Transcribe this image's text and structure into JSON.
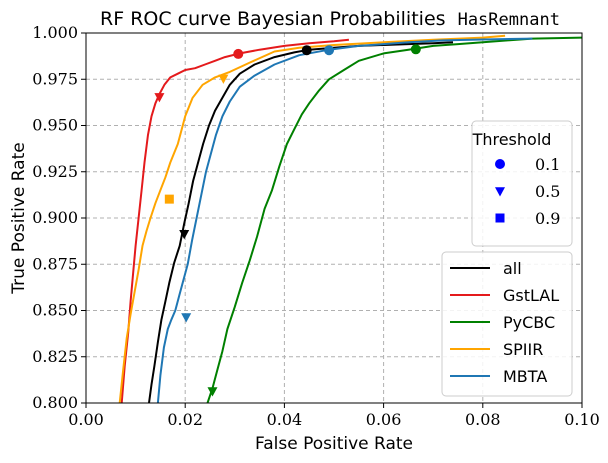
{
  "chart_data": {
    "type": "line",
    "title": "RF ROC curve Bayesian Probabilities",
    "title_code": "HasRemnant",
    "xlabel": "False Positive Rate",
    "ylabel": "True Positive Rate",
    "xlim": [
      0.0,
      0.1
    ],
    "ylim": [
      0.8,
      1.0
    ],
    "xticks": [
      {
        "value": 0.0,
        "label": "0.00"
      },
      {
        "value": 0.02,
        "label": "0.02"
      },
      {
        "value": 0.04,
        "label": "0.04"
      },
      {
        "value": 0.06,
        "label": "0.06"
      },
      {
        "value": 0.08,
        "label": "0.08"
      },
      {
        "value": 0.1,
        "label": "0.10"
      }
    ],
    "yticks": [
      {
        "value": 0.8,
        "label": "0.800"
      },
      {
        "value": 0.825,
        "label": "0.825"
      },
      {
        "value": 0.85,
        "label": "0.850"
      },
      {
        "value": 0.875,
        "label": "0.875"
      },
      {
        "value": 0.9,
        "label": "0.900"
      },
      {
        "value": 0.925,
        "label": "0.925"
      },
      {
        "value": 0.95,
        "label": "0.950"
      },
      {
        "value": 0.975,
        "label": "0.975"
      },
      {
        "value": 1.0,
        "label": "1.000"
      }
    ],
    "grid": true,
    "series": [
      {
        "name": "all",
        "color": "#000000",
        "x": [
          0.0127,
          0.0132,
          0.0138,
          0.0145,
          0.0152,
          0.016,
          0.0168,
          0.0178,
          0.0189,
          0.0198,
          0.0207,
          0.0216,
          0.0226,
          0.0236,
          0.0248,
          0.026,
          0.0275,
          0.029,
          0.031,
          0.034,
          0.038,
          0.042,
          0.045,
          0.05,
          0.055,
          0.06,
          0.065,
          0.07,
          0.074
        ],
        "y": [
          0.8,
          0.81,
          0.82,
          0.833,
          0.845,
          0.855,
          0.865,
          0.876,
          0.885,
          0.897,
          0.908,
          0.92,
          0.93,
          0.94,
          0.95,
          0.958,
          0.965,
          0.972,
          0.978,
          0.983,
          0.987,
          0.9895,
          0.991,
          0.992,
          0.993,
          0.9935,
          0.994,
          0.9945,
          0.995
        ]
      },
      {
        "name": "GstLAL",
        "color": "#e41a1c",
        "x": [
          0.0072,
          0.0078,
          0.0085,
          0.009,
          0.0095,
          0.01,
          0.0106,
          0.0112,
          0.0118,
          0.0125,
          0.0132,
          0.014,
          0.0148,
          0.0158,
          0.017,
          0.0185,
          0.02,
          0.022,
          0.024,
          0.026,
          0.028,
          0.031,
          0.035,
          0.04,
          0.045,
          0.05,
          0.053
        ],
        "y": [
          0.8,
          0.82,
          0.838,
          0.855,
          0.87,
          0.885,
          0.9,
          0.915,
          0.93,
          0.945,
          0.955,
          0.962,
          0.967,
          0.972,
          0.976,
          0.978,
          0.98,
          0.981,
          0.983,
          0.985,
          0.987,
          0.989,
          0.991,
          0.993,
          0.9945,
          0.9955,
          0.9963
        ]
      },
      {
        "name": "PyCBC",
        "color": "#008000",
        "x": [
          0.0245,
          0.0255,
          0.0265,
          0.0275,
          0.0285,
          0.03,
          0.0315,
          0.033,
          0.0345,
          0.036,
          0.0375,
          0.039,
          0.0405,
          0.042,
          0.0435,
          0.045,
          0.047,
          0.049,
          0.052,
          0.055,
          0.06,
          0.065,
          0.07,
          0.075,
          0.08,
          0.085,
          0.09,
          0.1
        ],
        "y": [
          0.8,
          0.808,
          0.818,
          0.828,
          0.84,
          0.852,
          0.865,
          0.877,
          0.89,
          0.905,
          0.915,
          0.928,
          0.94,
          0.948,
          0.956,
          0.962,
          0.969,
          0.975,
          0.98,
          0.985,
          0.989,
          0.991,
          0.993,
          0.994,
          0.995,
          0.996,
          0.997,
          0.9975
        ]
      },
      {
        "name": "SPIIR",
        "color": "#ffa500",
        "x": [
          0.0068,
          0.0075,
          0.0082,
          0.009,
          0.0098,
          0.0106,
          0.0114,
          0.0122,
          0.013,
          0.014,
          0.015,
          0.016,
          0.017,
          0.0185,
          0.02,
          0.0215,
          0.0235,
          0.026,
          0.029,
          0.033,
          0.038,
          0.043,
          0.05,
          0.06,
          0.07,
          0.08,
          0.0845
        ],
        "y": [
          0.8,
          0.818,
          0.835,
          0.848,
          0.86,
          0.872,
          0.885,
          0.893,
          0.9,
          0.908,
          0.915,
          0.922,
          0.93,
          0.94,
          0.955,
          0.965,
          0.972,
          0.976,
          0.979,
          0.984,
          0.99,
          0.992,
          0.9935,
          0.995,
          0.9963,
          0.9975,
          0.9985
        ]
      },
      {
        "name": "MBTA",
        "color": "#1f77b4",
        "x": [
          0.0145,
          0.015,
          0.0157,
          0.0165,
          0.0172,
          0.018,
          0.0188,
          0.0196,
          0.0205,
          0.0214,
          0.0223,
          0.0232,
          0.0242,
          0.0252,
          0.0262,
          0.0275,
          0.029,
          0.031,
          0.034,
          0.038,
          0.043,
          0.049,
          0.055,
          0.06,
          0.065,
          0.072,
          0.08,
          0.09
        ],
        "y": [
          0.8,
          0.815,
          0.83,
          0.84,
          0.845,
          0.85,
          0.858,
          0.866,
          0.875,
          0.888,
          0.9,
          0.912,
          0.925,
          0.935,
          0.945,
          0.955,
          0.963,
          0.971,
          0.977,
          0.983,
          0.988,
          0.991,
          0.993,
          0.994,
          0.995,
          0.996,
          0.9965,
          0.997
        ]
      }
    ],
    "threshold_markers": [
      {
        "series": "GstLAL",
        "threshold": 0.1,
        "x": 0.0307,
        "y": 0.9887
      },
      {
        "series": "GstLAL",
        "threshold": 0.5,
        "x": 0.0148,
        "y": 0.9655
      },
      {
        "series": "all",
        "threshold": 0.1,
        "x": 0.0445,
        "y": 0.9907
      },
      {
        "series": "all",
        "threshold": 0.5,
        "x": 0.0198,
        "y": 0.8915
      },
      {
        "series": "PyCBC",
        "threshold": 0.1,
        "x": 0.0665,
        "y": 0.9912
      },
      {
        "series": "PyCBC",
        "threshold": 0.5,
        "x": 0.0255,
        "y": 0.8065
      },
      {
        "series": "SPIIR",
        "threshold": 0.5,
        "x": 0.0277,
        "y": 0.9755
      },
      {
        "series": "SPIIR",
        "threshold": 0.9,
        "x": 0.0168,
        "y": 0.9102
      },
      {
        "series": "MBTA",
        "threshold": 0.1,
        "x": 0.049,
        "y": 0.9907
      },
      {
        "series": "MBTA",
        "threshold": 0.5,
        "x": 0.0202,
        "y": 0.8465
      }
    ],
    "legend_threshold": {
      "title": "Threshold",
      "color": "#0000ff",
      "entries": [
        {
          "label": "0.1",
          "marker": "circle"
        },
        {
          "label": "0.5",
          "marker": "triangle-down"
        },
        {
          "label": "0.9",
          "marker": "square"
        }
      ],
      "placement": "center-right"
    },
    "legend_series": {
      "placement": "bottom-right",
      "entries": [
        "all",
        "GstLAL",
        "PyCBC",
        "SPIIR",
        "MBTA"
      ]
    }
  }
}
